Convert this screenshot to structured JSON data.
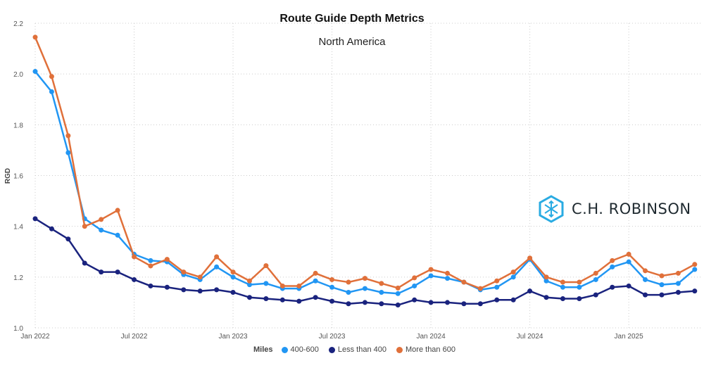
{
  "chart_data": {
    "type": "line",
    "title": "Route Guide Depth Metrics",
    "subtitle": "North America",
    "xlabel": "",
    "ylabel": "RGD",
    "ylim": [
      1.0,
      2.2
    ],
    "yticks": [
      "1.0",
      "1.2",
      "1.4",
      "1.6",
      "1.8",
      "2.0",
      "2.2"
    ],
    "xticks": [
      {
        "label": "Jan 2022",
        "index": 0
      },
      {
        "label": "Jul 2022",
        "index": 6
      },
      {
        "label": "Jan 2023",
        "index": 12
      },
      {
        "label": "Jul 2023",
        "index": 18
      },
      {
        "label": "Jan 2024",
        "index": 24
      },
      {
        "label": "Jul 2024",
        "index": 30
      },
      {
        "label": "Jan 2025",
        "index": 36
      }
    ],
    "x_start": "Jan 2022",
    "x_frequency": "monthly",
    "grid": true,
    "legend": {
      "title": "Miles",
      "placement": "bottom"
    },
    "series": [
      {
        "name": "400-600",
        "color": "#2196f3",
        "values": [
          2.01,
          1.93,
          1.69,
          1.43,
          1.385,
          1.365,
          1.29,
          1.265,
          1.26,
          1.21,
          1.19,
          1.24,
          1.2,
          1.17,
          1.175,
          1.155,
          1.155,
          1.185,
          1.16,
          1.14,
          1.155,
          1.14,
          1.135,
          1.165,
          1.205,
          1.195,
          1.18,
          1.15,
          1.16,
          1.2,
          1.27,
          1.185,
          1.16,
          1.16,
          1.19,
          1.24,
          1.26,
          1.19,
          1.17,
          1.175,
          1.23
        ]
      },
      {
        "name": "Less than 400",
        "color": "#1a237e",
        "values": [
          1.43,
          1.39,
          1.35,
          1.255,
          1.22,
          1.22,
          1.19,
          1.165,
          1.16,
          1.15,
          1.145,
          1.15,
          1.14,
          1.12,
          1.115,
          1.11,
          1.105,
          1.12,
          1.105,
          1.095,
          1.1,
          1.095,
          1.09,
          1.11,
          1.1,
          1.1,
          1.095,
          1.095,
          1.11,
          1.11,
          1.145,
          1.12,
          1.115,
          1.115,
          1.13,
          1.16,
          1.165,
          1.13,
          1.13,
          1.14,
          1.145
        ]
      },
      {
        "name": "More than 600",
        "color": "#e0703a",
        "values": [
          2.145,
          1.99,
          1.757,
          1.4,
          1.427,
          1.463,
          1.28,
          1.244,
          1.27,
          1.22,
          1.2,
          1.28,
          1.22,
          1.185,
          1.245,
          1.165,
          1.165,
          1.215,
          1.19,
          1.18,
          1.195,
          1.175,
          1.157,
          1.197,
          1.23,
          1.215,
          1.18,
          1.155,
          1.185,
          1.22,
          1.275,
          1.2,
          1.18,
          1.18,
          1.215,
          1.265,
          1.29,
          1.225,
          1.205,
          1.215,
          1.25
        ]
      }
    ]
  },
  "logo": {
    "text": "C.H. ROBINSON",
    "color": "#29abe2"
  }
}
